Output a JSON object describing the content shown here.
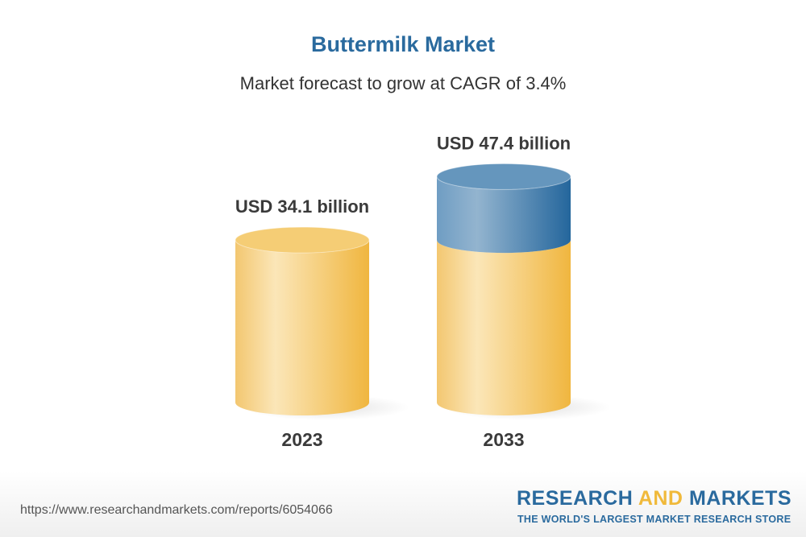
{
  "chart_data": {
    "type": "bar",
    "style": "3d-cylinder",
    "title": "Buttermilk Market",
    "subtitle": "Market forecast to grow at CAGR of 3.4%",
    "categories": [
      "2023",
      "2033"
    ],
    "values": [
      34.1,
      47.4
    ],
    "unit": "USD billion",
    "data_labels": [
      "USD 34.1 billion",
      "USD 47.4 billion"
    ],
    "grid": false,
    "colors": {
      "base": "#f2bd48",
      "growth": "#2a6a9e"
    }
  },
  "footer": {
    "url": "https://www.researchandmarkets.com/reports/6054066",
    "logo_part1": "RESEARCH ",
    "logo_part2": "AND",
    "logo_part3": " MARKETS",
    "tagline": "THE WORLD'S LARGEST MARKET RESEARCH STORE"
  }
}
